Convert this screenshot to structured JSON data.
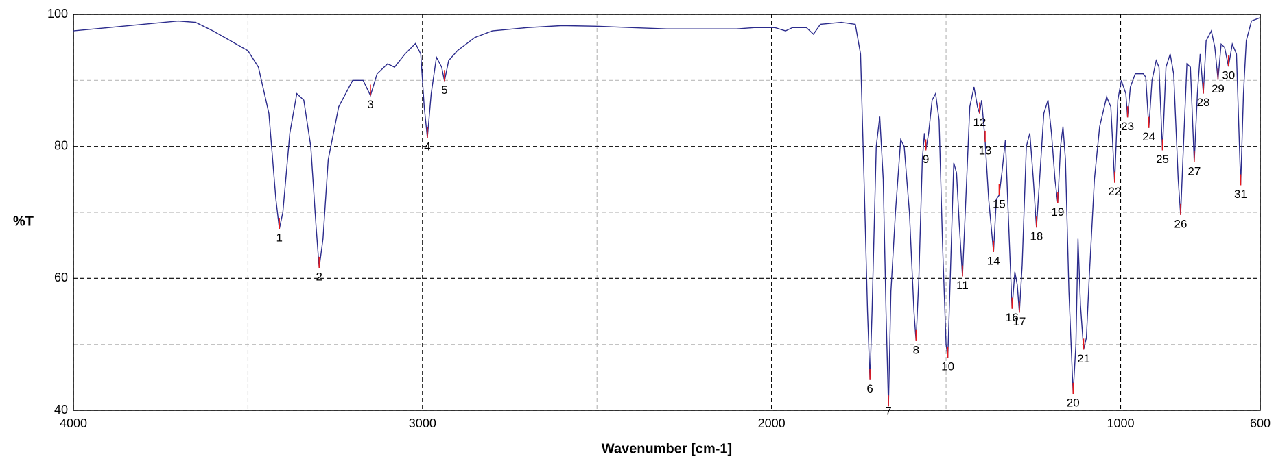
{
  "chart_data": {
    "type": "line",
    "xlabel": "Wavenumber [cm-1]",
    "ylabel": "%T",
    "xlim": [
      4000,
      600
    ],
    "xticks": [
      4000,
      3000,
      2000,
      1000,
      600
    ],
    "xminor": [
      3500,
      2500,
      1500
    ],
    "ylim": [
      40,
      100
    ],
    "yticks": [
      40,
      60,
      80,
      100
    ],
    "yminor": [
      50,
      70,
      90
    ],
    "grid": true,
    "color": "#2b2b8c",
    "peak_color": "#e8191b",
    "x": [
      4000,
      3900,
      3800,
      3700,
      3650,
      3600,
      3550,
      3500,
      3470,
      3440,
      3420,
      3410,
      3400,
      3380,
      3360,
      3340,
      3320,
      3305,
      3296,
      3285,
      3270,
      3240,
      3200,
      3170,
      3149,
      3130,
      3100,
      3080,
      3050,
      3020,
      3005,
      2995,
      2986,
      2975,
      2960,
      2945,
      2937,
      2925,
      2900,
      2850,
      2800,
      2700,
      2600,
      2500,
      2400,
      2300,
      2200,
      2100,
      2050,
      1990,
      1960,
      1940,
      1900,
      1880,
      1860,
      1800,
      1760,
      1745,
      1735,
      1725,
      1718,
      1712,
      1700,
      1690,
      1680,
      1672,
      1665,
      1658,
      1645,
      1630,
      1620,
      1605,
      1592,
      1586,
      1578,
      1568,
      1562,
      1558,
      1550,
      1540,
      1530,
      1520,
      1510,
      1500,
      1495,
      1488,
      1478,
      1470,
      1462,
      1453,
      1445,
      1432,
      1420,
      1410,
      1404,
      1398,
      1388,
      1378,
      1364,
      1356,
      1348,
      1340,
      1330,
      1322,
      1311,
      1303,
      1296,
      1290,
      1282,
      1270,
      1260,
      1250,
      1241,
      1232,
      1220,
      1208,
      1198,
      1188,
      1180,
      1172,
      1165,
      1158,
      1148,
      1136,
      1128,
      1122,
      1115,
      1106,
      1098,
      1090,
      1075,
      1060,
      1040,
      1028,
      1017,
      1008,
      998,
      985,
      980,
      972,
      958,
      935,
      928,
      919,
      910,
      898,
      890,
      880,
      870,
      858,
      848,
      835,
      828,
      820,
      810,
      800,
      789,
      780,
      772,
      763,
      755,
      740,
      730,
      721,
      712,
      702,
      691,
      680,
      668,
      656,
      648,
      640,
      625,
      600
    ],
    "values": [
      97.5,
      98,
      98.5,
      99,
      98.8,
      97.5,
      96,
      94.5,
      92,
      85,
      72,
      67.5,
      70,
      82,
      88,
      87,
      80,
      68,
      61.6,
      66,
      78,
      86,
      90,
      90,
      87.7,
      91,
      92.5,
      92,
      94,
      95.6,
      94,
      86,
      81.3,
      88,
      93.5,
      92,
      89.9,
      93,
      94.5,
      96.5,
      97.5,
      98,
      98.3,
      98.2,
      98,
      97.8,
      97.8,
      97.8,
      98,
      98,
      97.5,
      98,
      98,
      97,
      98.5,
      98.8,
      98.5,
      94,
      75,
      55,
      44.6,
      55,
      80,
      84.5,
      75,
      55,
      40.6,
      58,
      70,
      81,
      80,
      70,
      55,
      50.5,
      60,
      78,
      82,
      79.4,
      82,
      87,
      88,
      84,
      65,
      50,
      48,
      60,
      77.5,
      76,
      68,
      60.3,
      70,
      86,
      89,
      86,
      85,
      87,
      80.7,
      72,
      64,
      72,
      72.6,
      76,
      81,
      70,
      55.4,
      61,
      59,
      54.8,
      62,
      80,
      82,
      75,
      67.7,
      75,
      85,
      87,
      82,
      75,
      71.4,
      80,
      83,
      78,
      58,
      42.5,
      50,
      66,
      56,
      49.2,
      51,
      60,
      75,
      83,
      87.5,
      86,
      74.5,
      87,
      90,
      88,
      84.4,
      89,
      91,
      91,
      90.5,
      82.8,
      90,
      93,
      92,
      79.4,
      92,
      94,
      91,
      75,
      69.6,
      80,
      92.5,
      92,
      77.6,
      88,
      94,
      88,
      96,
      97.5,
      95,
      90.1,
      95.5,
      95,
      92.1,
      95.5,
      94,
      74.1,
      88,
      96,
      99,
      99.5
    ],
    "peaks": {
      "labels": [
        "1",
        "2",
        "3",
        "4",
        "5",
        "6",
        "7",
        "8",
        "9",
        "10",
        "11",
        "12",
        "13",
        "14",
        "15",
        "16",
        "17",
        "18",
        "19",
        "20",
        "21",
        "22",
        "23",
        "24",
        "25",
        "26",
        "27",
        "28",
        "29",
        "30",
        "31"
      ],
      "x": [
        3410,
        3296,
        3149,
        2986,
        2937,
        1718,
        1665,
        1586,
        1558,
        1495,
        1453,
        1404,
        1388,
        1364,
        1348,
        1311,
        1290,
        1241,
        1180,
        1136,
        1106,
        1017,
        980,
        919,
        880,
        828,
        789,
        763,
        721,
        691,
        656
      ],
      "y": [
        67.5,
        61.6,
        87.7,
        81.3,
        89.9,
        44.6,
        40.6,
        50.5,
        79.4,
        48,
        60.3,
        85,
        80.7,
        64,
        72.6,
        55.4,
        54.8,
        67.7,
        71.4,
        42.5,
        49.2,
        74.5,
        84.4,
        82.8,
        79.4,
        69.6,
        77.6,
        88,
        90.1,
        92.1,
        74.1
      ]
    }
  }
}
